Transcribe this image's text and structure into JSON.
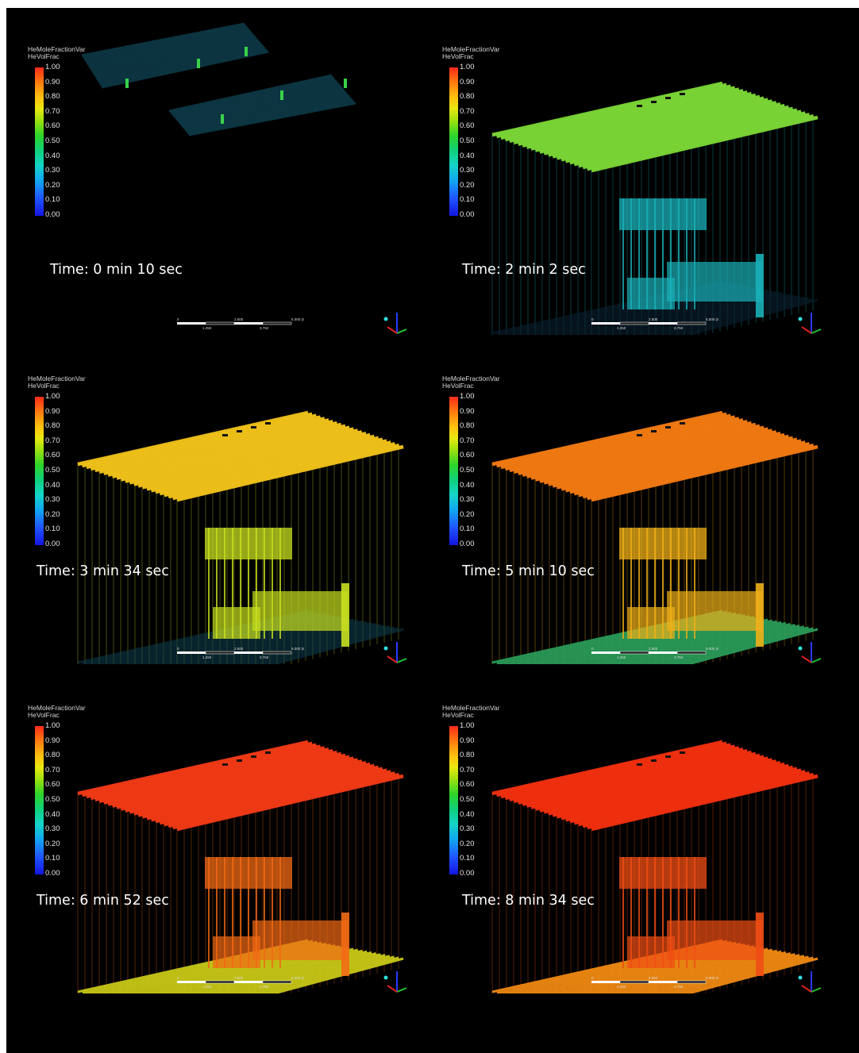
{
  "legend": {
    "variable": "HeMoleFractionVar",
    "field": "HeVolFrac",
    "ticks": [
      "1.00",
      "0.90",
      "0.80",
      "0.70",
      "0.60",
      "0.50",
      "0.40",
      "0.30",
      "0.20",
      "0.10",
      "0.00"
    ]
  },
  "scale": {
    "labels_top": [
      "0",
      "2.500",
      "5.000 (m)"
    ],
    "labels_bottom": [
      "1.250",
      "3.750"
    ]
  },
  "panels": [
    {
      "time": "Time: 0 min 10 sec",
      "ceiling_color": "#0e3a48",
      "floor_color": "#05141c",
      "mid_color": "#0a2a38",
      "stage": 0
    },
    {
      "time": "Time: 2 min 2 sec",
      "ceiling_color": "#7bd636",
      "floor_color": "#0a2030",
      "mid_color": "#1ab0b8",
      "stage": 1
    },
    {
      "time": "Time: 3 min 34 sec",
      "ceiling_color": "#f0c21a",
      "floor_color": "#0e3a48",
      "mid_color": "#c8e020",
      "stage": 2
    },
    {
      "time": "Time: 5 min 10 sec",
      "ceiling_color": "#f27a12",
      "floor_color": "#2a9a58",
      "mid_color": "#f0b018",
      "stage": 3
    },
    {
      "time": "Time: 6 min 52 sec",
      "ceiling_color": "#f23a16",
      "floor_color": "#c8c818",
      "mid_color": "#f26a14",
      "stage": 4
    },
    {
      "time": "Time: 8 min 34 sec",
      "ceiling_color": "#f2300f",
      "floor_color": "#f08a12",
      "mid_color": "#f04e14",
      "stage": 5
    }
  ]
}
